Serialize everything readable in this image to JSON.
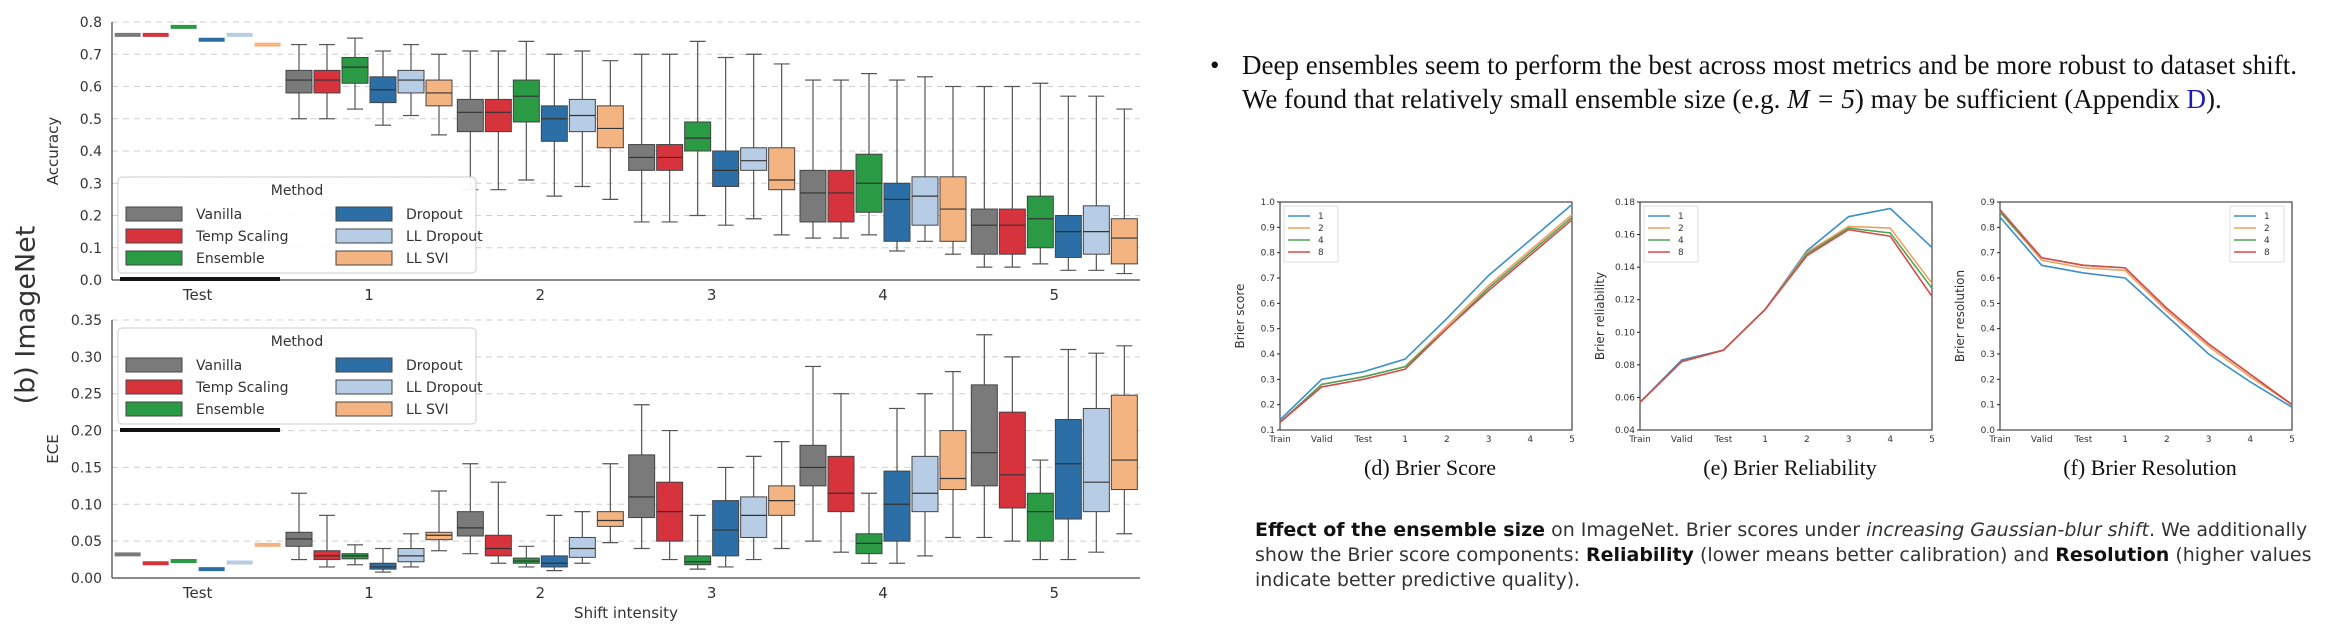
{
  "side_label": "(b) ImageNet",
  "bullet": {
    "symbol": "•",
    "line1": "Deep ensembles seem to perform the best across most metrics and be more robust to dataset shift.",
    "line2_a": "We found that relatively small ensemble size (e.g. ",
    "line2_eq": "M = 5",
    "line2_b": ") may be sufficient (Appendix ",
    "line2_ref": "D",
    "line2_c": ")."
  },
  "captions": [
    "(d) Brier Score",
    "(e) Brier Reliability",
    "(f) Brier Resolution"
  ],
  "paragraph": {
    "bold1": "Effect of the ensemble size",
    "t1": " on ImageNet. Brier scores under ",
    "ital": "increasing Gaussian-blur shift",
    "t2": ". We additionally show the Brier score components: ",
    "bold2": "Reliability",
    "t3": " (lower means better calibration) and ",
    "bold3": "Resolution",
    "t4": " (higher values indicate better predictive quality)."
  },
  "colors": {
    "Vanilla": "#7a7a7a",
    "Temp Scaling": "#d6333d",
    "Ensemble": "#2a9a44",
    "Dropout": "#2b6fa6",
    "LL Dropout": "#b7cde6",
    "LL SVI": "#f4b482",
    "m1": "#3c8fc7",
    "m2": "#f0a060",
    "m4": "#4aa65a",
    "m8": "#d94a4a"
  },
  "chart_data": [
    {
      "type": "box",
      "ylabel": "Accuracy",
      "xlabel": "",
      "ylim": [
        0,
        0.8
      ],
      "yticks": [
        "0.0",
        "0.1",
        "0.2",
        "0.3",
        "0.4",
        "0.5",
        "0.6",
        "0.7",
        "0.8"
      ],
      "categories": [
        "Test",
        "1",
        "2",
        "3",
        "4",
        "5"
      ],
      "legend": {
        "title": "Method",
        "position": "lower-left"
      },
      "series": [
        {
          "name": "Vanilla",
          "test": 0.76,
          "boxes": [
            [
              0.5,
              0.58,
              0.62,
              0.65,
              0.73
            ],
            [
              0.28,
              0.46,
              0.52,
              0.56,
              0.71
            ],
            [
              0.18,
              0.34,
              0.38,
              0.42,
              0.7
            ],
            [
              0.13,
              0.18,
              0.27,
              0.34,
              0.62
            ],
            [
              0.04,
              0.08,
              0.17,
              0.22,
              0.6
            ]
          ]
        },
        {
          "name": "Temp Scaling",
          "test": 0.76,
          "boxes": [
            [
              0.5,
              0.58,
              0.62,
              0.65,
              0.73
            ],
            [
              0.28,
              0.46,
              0.52,
              0.56,
              0.71
            ],
            [
              0.18,
              0.34,
              0.38,
              0.42,
              0.7
            ],
            [
              0.13,
              0.18,
              0.27,
              0.34,
              0.62
            ],
            [
              0.04,
              0.08,
              0.17,
              0.22,
              0.6
            ]
          ]
        },
        {
          "name": "Ensemble",
          "test": 0.785,
          "boxes": [
            [
              0.53,
              0.61,
              0.66,
              0.69,
              0.75
            ],
            [
              0.31,
              0.49,
              0.57,
              0.62,
              0.74
            ],
            [
              0.2,
              0.4,
              0.44,
              0.49,
              0.74
            ],
            [
              0.14,
              0.21,
              0.3,
              0.39,
              0.64
            ],
            [
              0.05,
              0.1,
              0.19,
              0.26,
              0.61
            ]
          ]
        },
        {
          "name": "Dropout",
          "test": 0.745,
          "boxes": [
            [
              0.48,
              0.55,
              0.59,
              0.63,
              0.71
            ],
            [
              0.26,
              0.43,
              0.5,
              0.54,
              0.7
            ],
            [
              0.17,
              0.29,
              0.34,
              0.4,
              0.69
            ],
            [
              0.09,
              0.12,
              0.25,
              0.3,
              0.62
            ],
            [
              0.03,
              0.07,
              0.15,
              0.2,
              0.57
            ]
          ]
        },
        {
          "name": "LL Dropout",
          "test": 0.76,
          "boxes": [
            [
              0.51,
              0.58,
              0.62,
              0.65,
              0.73
            ],
            [
              0.29,
              0.46,
              0.51,
              0.56,
              0.71
            ],
            [
              0.19,
              0.34,
              0.37,
              0.41,
              0.7
            ],
            [
              0.12,
              0.17,
              0.26,
              0.32,
              0.63
            ],
            [
              0.03,
              0.08,
              0.15,
              0.23,
              0.57
            ]
          ]
        },
        {
          "name": "LL SVI",
          "test": 0.73,
          "boxes": [
            [
              0.45,
              0.54,
              0.58,
              0.62,
              0.7
            ],
            [
              0.25,
              0.41,
              0.47,
              0.54,
              0.68
            ],
            [
              0.14,
              0.28,
              0.31,
              0.41,
              0.67
            ],
            [
              0.08,
              0.12,
              0.22,
              0.32,
              0.6
            ],
            [
              0.02,
              0.05,
              0.13,
              0.19,
              0.53
            ]
          ]
        }
      ]
    },
    {
      "type": "box",
      "ylabel": "ECE",
      "xlabel": "Shift intensity",
      "ylim": [
        0,
        0.35
      ],
      "yticks": [
        "0.00",
        "0.05",
        "0.10",
        "0.15",
        "0.20",
        "0.25",
        "0.30",
        "0.35"
      ],
      "categories": [
        "Test",
        "1",
        "2",
        "3",
        "4",
        "5"
      ],
      "legend": {
        "title": "Method",
        "position": "upper-left"
      },
      "series": [
        {
          "name": "Vanilla",
          "test": 0.032,
          "boxes": [
            [
              0.025,
              0.043,
              0.053,
              0.062,
              0.115
            ],
            [
              0.033,
              0.057,
              0.068,
              0.09,
              0.155
            ],
            [
              0.04,
              0.082,
              0.11,
              0.167,
              0.235
            ],
            [
              0.05,
              0.125,
              0.15,
              0.18,
              0.287
            ],
            [
              0.055,
              0.125,
              0.17,
              0.262,
              0.33
            ]
          ]
        },
        {
          "name": "Temp Scaling",
          "test": 0.02,
          "boxes": [
            [
              0.015,
              0.025,
              0.03,
              0.037,
              0.085
            ],
            [
              0.02,
              0.03,
              0.04,
              0.058,
              0.13
            ],
            [
              0.025,
              0.05,
              0.09,
              0.13,
              0.2
            ],
            [
              0.035,
              0.09,
              0.115,
              0.165,
              0.25
            ],
            [
              0.05,
              0.095,
              0.14,
              0.225,
              0.3
            ]
          ]
        },
        {
          "name": "Ensemble",
          "test": 0.023,
          "boxes": [
            [
              0.018,
              0.026,
              0.03,
              0.033,
              0.045
            ],
            [
              0.015,
              0.02,
              0.023,
              0.027,
              0.043
            ],
            [
              0.012,
              0.018,
              0.022,
              0.03,
              0.085
            ],
            [
              0.02,
              0.033,
              0.047,
              0.06,
              0.115
            ],
            [
              0.025,
              0.05,
              0.09,
              0.115,
              0.16
            ]
          ]
        },
        {
          "name": "Dropout",
          "test": 0.012,
          "boxes": [
            [
              0.008,
              0.012,
              0.015,
              0.02,
              0.04
            ],
            [
              0.01,
              0.015,
              0.02,
              0.03,
              0.085
            ],
            [
              0.015,
              0.03,
              0.065,
              0.105,
              0.15
            ],
            [
              0.02,
              0.05,
              0.1,
              0.145,
              0.23
            ],
            [
              0.025,
              0.08,
              0.155,
              0.215,
              0.31
            ]
          ]
        },
        {
          "name": "LL Dropout",
          "test": 0.021,
          "boxes": [
            [
              0.015,
              0.022,
              0.03,
              0.04,
              0.06
            ],
            [
              0.02,
              0.028,
              0.04,
              0.055,
              0.09
            ],
            [
              0.025,
              0.055,
              0.085,
              0.11,
              0.165
            ],
            [
              0.03,
              0.09,
              0.115,
              0.165,
              0.25
            ],
            [
              0.035,
              0.09,
              0.13,
              0.23,
              0.305
            ]
          ]
        },
        {
          "name": "LL SVI",
          "test": 0.045,
          "boxes": [
            [
              0.037,
              0.052,
              0.058,
              0.062,
              0.118
            ],
            [
              0.048,
              0.07,
              0.078,
              0.09,
              0.155
            ],
            [
              0.04,
              0.085,
              0.105,
              0.125,
              0.185
            ],
            [
              0.055,
              0.12,
              0.135,
              0.2,
              0.28
            ],
            [
              0.06,
              0.12,
              0.16,
              0.248,
              0.315
            ]
          ]
        }
      ]
    },
    {
      "type": "line",
      "title": "(d) Brier Score",
      "ylabel": "Brier score",
      "ylim": [
        0.1,
        1.0
      ],
      "yticks": [
        "0.1",
        "0.2",
        "0.3",
        "0.4",
        "0.5",
        "0.6",
        "0.7",
        "0.8",
        "0.9",
        "1.0"
      ],
      "x": [
        "Train",
        "Valid",
        "Test",
        "1",
        "2",
        "3",
        "4",
        "5"
      ],
      "legend_position": "top-left",
      "series": [
        {
          "name": "1",
          "values": [
            0.14,
            0.3,
            0.33,
            0.38,
            0.54,
            0.71,
            0.85,
            0.99
          ]
        },
        {
          "name": "2",
          "values": [
            0.13,
            0.28,
            0.31,
            0.35,
            0.51,
            0.67,
            0.81,
            0.95
          ]
        },
        {
          "name": "4",
          "values": [
            0.13,
            0.28,
            0.31,
            0.35,
            0.5,
            0.66,
            0.8,
            0.94
          ]
        },
        {
          "name": "8",
          "values": [
            0.13,
            0.27,
            0.3,
            0.34,
            0.5,
            0.65,
            0.79,
            0.93
          ]
        }
      ]
    },
    {
      "type": "line",
      "title": "(e) Brier Reliability",
      "ylabel": "Brier reliability",
      "ylim": [
        0.04,
        0.18
      ],
      "yticks": [
        "0.04",
        "0.06",
        "0.08",
        "0.10",
        "0.12",
        "0.14",
        "0.16",
        "0.18"
      ],
      "x": [
        "Train",
        "Valid",
        "Test",
        "1",
        "2",
        "3",
        "4",
        "5"
      ],
      "legend_position": "top-left",
      "series": [
        {
          "name": "1",
          "values": [
            0.057,
            0.083,
            0.089,
            0.114,
            0.15,
            0.171,
            0.176,
            0.152
          ]
        },
        {
          "name": "2",
          "values": [
            0.057,
            0.082,
            0.089,
            0.114,
            0.149,
            0.165,
            0.164,
            0.13
          ]
        },
        {
          "name": "4",
          "values": [
            0.057,
            0.082,
            0.089,
            0.114,
            0.148,
            0.164,
            0.161,
            0.127
          ]
        },
        {
          "name": "8",
          "values": [
            0.057,
            0.082,
            0.089,
            0.114,
            0.147,
            0.163,
            0.159,
            0.122
          ]
        }
      ]
    },
    {
      "type": "line",
      "title": "(f) Brier Resolution",
      "ylabel": "Brier resolution",
      "ylim": [
        0.0,
        0.9
      ],
      "yticks": [
        "0.0",
        "0.1",
        "0.2",
        "0.3",
        "0.4",
        "0.5",
        "0.6",
        "0.7",
        "0.8",
        "0.9"
      ],
      "x": [
        "Train",
        "Valid",
        "Test",
        "1",
        "2",
        "3",
        "4",
        "5"
      ],
      "legend_position": "top-right",
      "series": [
        {
          "name": "1",
          "values": [
            0.84,
            0.65,
            0.62,
            0.6,
            0.45,
            0.3,
            0.19,
            0.09
          ]
        },
        {
          "name": "2",
          "values": [
            0.86,
            0.67,
            0.64,
            0.63,
            0.47,
            0.33,
            0.21,
            0.1
          ]
        },
        {
          "name": "4",
          "values": [
            0.86,
            0.68,
            0.65,
            0.64,
            0.48,
            0.34,
            0.22,
            0.1
          ]
        },
        {
          "name": "8",
          "values": [
            0.87,
            0.68,
            0.65,
            0.64,
            0.48,
            0.34,
            0.22,
            0.1
          ]
        }
      ]
    }
  ]
}
